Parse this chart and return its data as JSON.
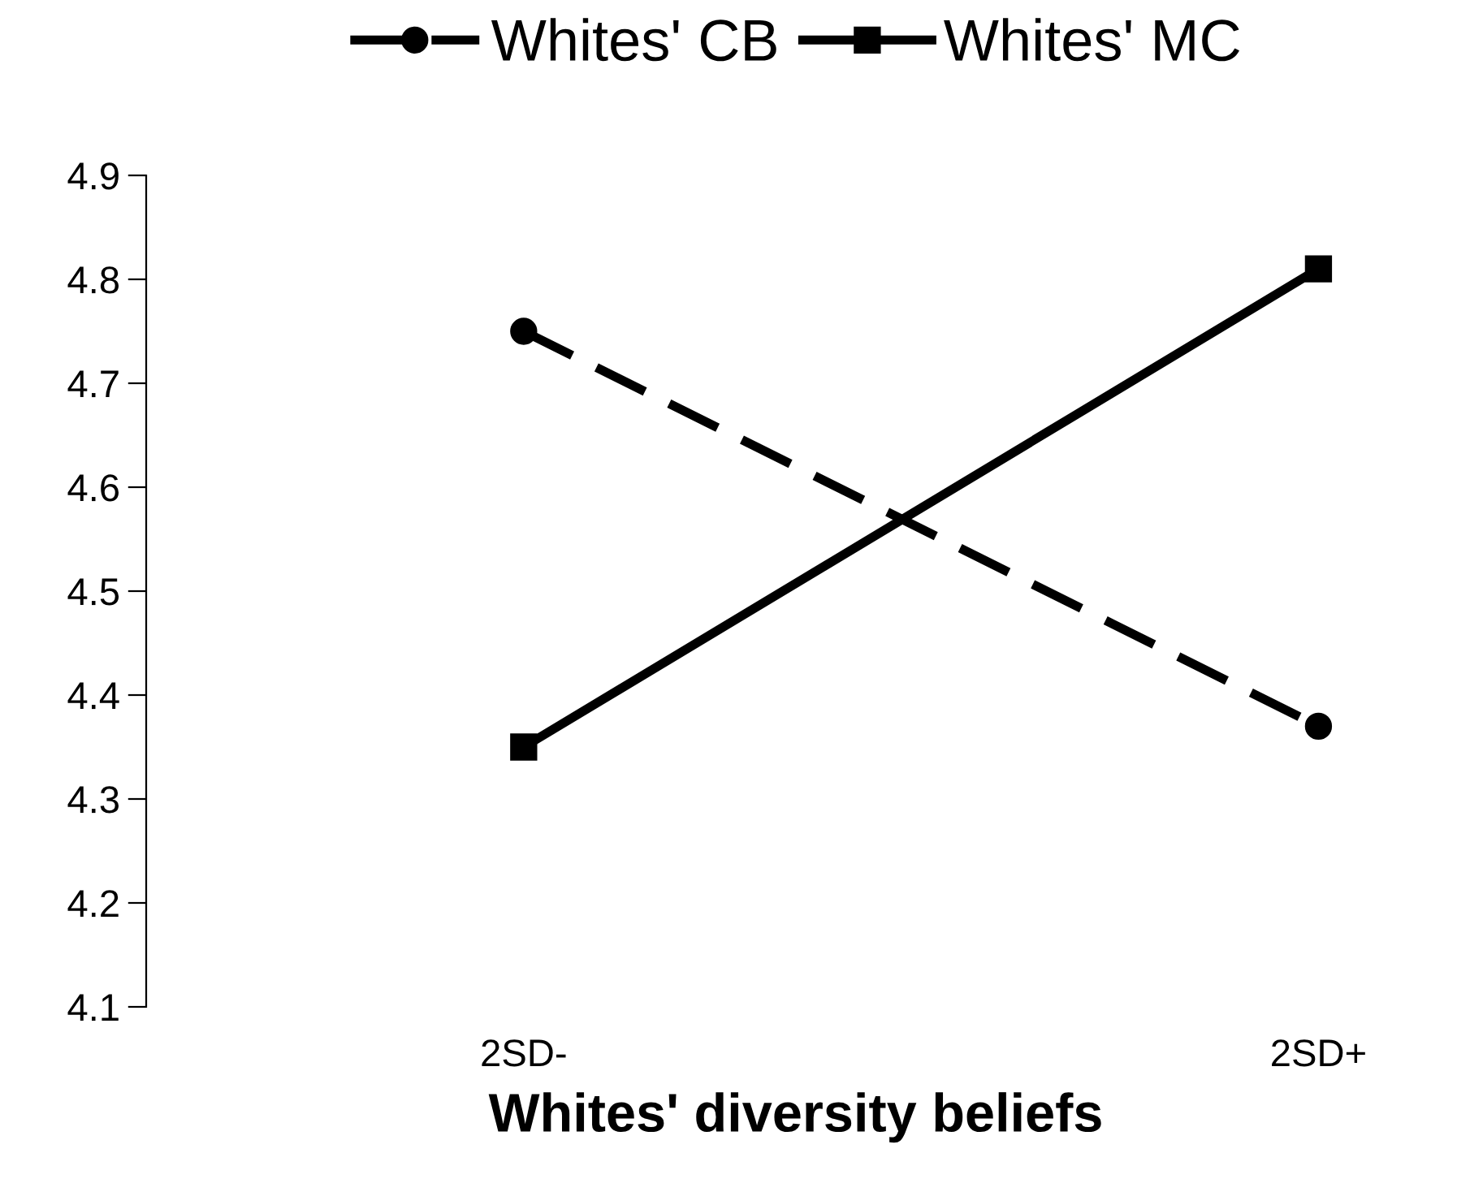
{
  "chart_data": {
    "type": "line",
    "xlabel": "Whites' diversity beliefs",
    "categories": [
      "2SD-",
      "2SD+"
    ],
    "series": [
      {
        "name": "Whites' CB",
        "color": "#000000",
        "values": [
          4.75,
          4.37
        ],
        "marker": "circle",
        "line_style": "dashed"
      },
      {
        "name": "Whites' MC",
        "color": "#000000",
        "values": [
          4.35,
          4.81
        ],
        "marker": "square",
        "line_style": "solid"
      }
    ],
    "ylim": [
      4.1,
      4.9
    ],
    "yticks": [
      4.1,
      4.2,
      4.3,
      4.4,
      4.5,
      4.6,
      4.7,
      4.8,
      4.9
    ],
    "grid": false,
    "legend": "top"
  }
}
